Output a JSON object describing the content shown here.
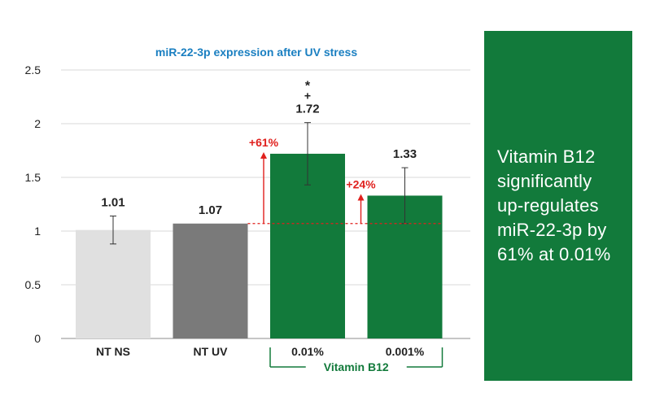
{
  "colors": {
    "light_gray": "#e0e0e0",
    "dark_gray": "#7a7a7a",
    "green": "#127a3b",
    "red": "#e0201d",
    "title_blue": "#1a7fc1",
    "grid": "#d9d9d9",
    "text": "#222222"
  },
  "chart_data": {
    "type": "bar",
    "title": "miR-22-3p expression after UV stress",
    "xlabel": "",
    "ylabel": "",
    "ylim": [
      0,
      2.5
    ],
    "yticks": [
      "0",
      "0.5",
      "1",
      "1.5",
      "2",
      "2.5"
    ],
    "ytick_values": [
      0,
      0.5,
      1,
      1.5,
      2,
      2.5
    ],
    "grid": true,
    "categories": [
      "NT NS",
      "NT UV",
      "0.01%",
      "0.001%"
    ],
    "values": [
      1.01,
      1.07,
      1.72,
      1.33
    ],
    "value_labels": [
      "1.01",
      "1.07",
      "1.72",
      "1.33"
    ],
    "error": [
      0.13,
      0.0,
      0.29,
      0.26
    ],
    "bar_colors": [
      "#e0e0e0",
      "#7a7a7a",
      "#127a3b",
      "#127a3b"
    ],
    "group_bracket": {
      "label": "Vitamin B12",
      "categories": [
        "0.01%",
        "0.001%"
      ]
    },
    "significance": {
      "category": "0.01%",
      "marks": [
        "*",
        "+"
      ]
    },
    "baseline": {
      "value": 1.07,
      "style": "dashed"
    },
    "annotations": [
      {
        "category": "0.01%",
        "label": "+61%"
      },
      {
        "category": "0.001%",
        "label": "+24%"
      }
    ]
  },
  "panel": {
    "lines": [
      "Vitamin B12",
      "significantly",
      "up-regulates",
      "miR-22-3p by",
      "61% at 0.01%"
    ]
  }
}
